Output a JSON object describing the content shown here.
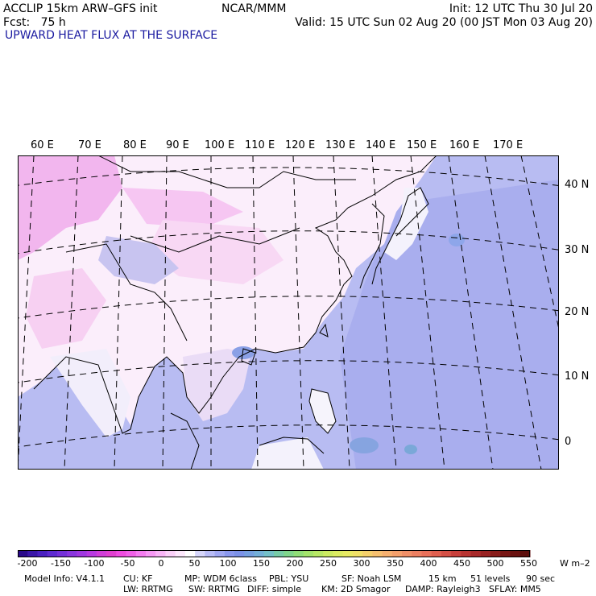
{
  "header": {
    "left_line1": "ACCLIP 15km ARW–GFS init",
    "left_line2": "Fcst:   75 h",
    "center_line1": "NCAR/MMM",
    "init": "Init: 12 UTC Thu 30 Jul 20",
    "valid": "Valid: 15 UTC Sun 02 Aug 20 (00 JST Mon 03 Aug 20)",
    "field_title": "UPWARD HEAT FLUX AT THE SURFACE"
  },
  "map": {
    "lon_labels": [
      "60 E",
      "70 E",
      "80 E",
      "90 E",
      "100 E",
      "110 E",
      "120 E",
      "130 E",
      "140 E",
      "150 E",
      "160 E",
      "170 E"
    ],
    "lat_labels": [
      "40 N",
      "30 N",
      "20 N",
      "10 N",
      "0"
    ]
  },
  "colorbar": {
    "colors": [
      "#2a0a8a",
      "#3a16a8",
      "#4a20c0",
      "#5e2ad0",
      "#7430d8",
      "#8a36de",
      "#a038e0",
      "#b83ae0",
      "#d03ed8",
      "#e040d0",
      "#ee4ce0",
      "#f060e8",
      "#f47cf0",
      "#f698f4",
      "#f8b4f6",
      "#fad0f8",
      "#fde8fc",
      "#ffffff",
      "#d6d6fa",
      "#b8bcf6",
      "#a0a8f2",
      "#8a98ee",
      "#7c92e8",
      "#76a0e0",
      "#74b0d8",
      "#74c0c8",
      "#78cca8",
      "#80d68c",
      "#90de78",
      "#a4e46c",
      "#b8e866",
      "#cceb62",
      "#dcec62",
      "#e8ea64",
      "#f0e068",
      "#f4d06c",
      "#f6c070",
      "#f6b070",
      "#f4a06c",
      "#f09068",
      "#ec8062",
      "#e8705a",
      "#e06050",
      "#d45046",
      "#c8403c",
      "#b83432",
      "#a82a2a",
      "#982222",
      "#881c1a",
      "#781614",
      "#6a1210",
      "#5c0e0c"
    ],
    "tick_labels": [
      "-200",
      "-150",
      "-100",
      "-50",
      "0",
      "50",
      "100",
      "150",
      "200",
      "250",
      "300",
      "350",
      "400",
      "450",
      "500",
      "550"
    ],
    "units": "W m–2"
  },
  "footer": {
    "line1_a": "Model Info: V4.1.1",
    "line1_b": "CU: KF",
    "line1_c": "MP: WDM 6class",
    "line1_d": "PBL: YSU",
    "line1_e": "SF: Noah LSM",
    "line1_f": "15 km",
    "line1_g": "51 levels",
    "line1_h": "90 sec",
    "line2_a": "LW: RRTMG",
    "line2_b": "SW: RRTMG",
    "line2_c": "DIFF: simple",
    "line2_d": "KM: 2D Smagor",
    "line2_e": "DAMP: Rayleigh3",
    "line2_f": "SFLAY: MM5"
  }
}
